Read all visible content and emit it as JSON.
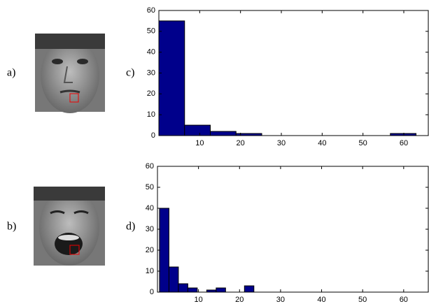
{
  "images": [
    {
      "label": "a)"
    },
    {
      "label": "b)"
    }
  ],
  "chart_data": [
    {
      "type": "histogram",
      "label": "c)",
      "color": "#00008b",
      "bins": [
        0,
        6.3,
        12.6,
        18.9,
        25.2,
        31.5,
        37.8,
        44.1,
        50.4,
        56.7,
        63
      ],
      "values": [
        55,
        5,
        2,
        1,
        0,
        0,
        0,
        0,
        0,
        1
      ],
      "xlim": [
        0,
        66
      ],
      "xticks": [
        10,
        20,
        30,
        40,
        50,
        60
      ],
      "ylim": [
        0,
        60
      ],
      "yticks": [
        0,
        10,
        20,
        30,
        40,
        50,
        60
      ]
    },
    {
      "type": "histogram",
      "label": "d)",
      "color": "#00008b",
      "bins": [
        0.5,
        2.8,
        5.1,
        7.4,
        9.7,
        12,
        14.3,
        16.6,
        18.9,
        21.2,
        23.5
      ],
      "values": [
        40,
        12,
        4,
        2,
        0,
        1,
        2,
        0,
        0,
        3
      ],
      "xlim": [
        0,
        66
      ],
      "xticks": [
        10,
        20,
        30,
        40,
        50,
        60
      ],
      "ylim": [
        0,
        60
      ],
      "yticks": [
        0,
        10,
        20,
        30,
        40,
        50,
        60
      ]
    }
  ]
}
